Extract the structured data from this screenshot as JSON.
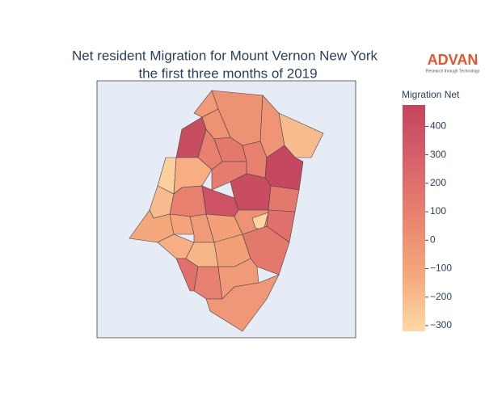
{
  "chart_data": {
    "type": "choropleth",
    "title": "Net resident Migration for Mount Vernon New York",
    "subtitle": "the first three months of 2019",
    "logo": "ADVAN",
    "logo_tagline": "Research through Technology",
    "colorbar_title": "Migration Net",
    "clim": [
      -320,
      475
    ],
    "colorscale": [
      "#fcd9a6",
      "#f5a77c",
      "#e9846f",
      "#d8636a",
      "#c2445e"
    ],
    "cticks": [
      {
        "value": -300,
        "label": "−300"
      },
      {
        "value": -200,
        "label": "−200"
      },
      {
        "value": -100,
        "label": "−100"
      },
      0,
      100,
      200,
      300,
      400
    ],
    "values": [
      0,
      -20,
      -200,
      -50,
      0,
      420,
      -280,
      100,
      150,
      100,
      450,
      -150,
      120,
      420,
      150,
      -200,
      100,
      380,
      -120,
      -100,
      -50,
      -80,
      0,
      200,
      -300,
      -150,
      -180,
      -80,
      150,
      200,
      100,
      -50,
      -30
    ]
  }
}
